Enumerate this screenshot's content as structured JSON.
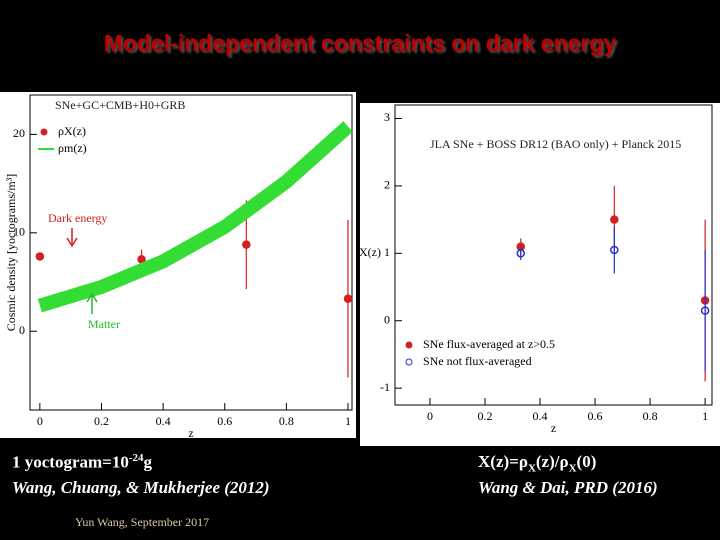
{
  "title": "Model-independent constraints on dark energy",
  "left_caption": {
    "unit_parts": [
      "1 yoctogram=10",
      "-24",
      "g"
    ],
    "citation": "Wang, Chuang, & Mukherjee (2012)"
  },
  "right_caption": {
    "equation_parts": [
      "X(z)=ρ",
      "X",
      "(z)/ρ",
      "X",
      "(0)"
    ],
    "citation": "Wang & Dai, PRD (2016)"
  },
  "footer": "Yun Wang, September 2017",
  "chart_data": [
    {
      "type": "line",
      "xlabel": "z",
      "ylabel": "Cosmic density [yoctograms/m³]",
      "xlim": [
        -0.032,
        1.013
      ],
      "ylim": [
        -8,
        24
      ],
      "xticks": [
        0,
        0.2,
        0.4,
        0.6,
        0.8,
        1
      ],
      "yticks": [
        0,
        10,
        20
      ],
      "legend": "upper left",
      "annotations": [
        "SNe+GC+CMB+H0+GRB",
        "Dark energy",
        "Matter"
      ],
      "series": [
        {
          "name": "ρX(z)",
          "color": "#d42020",
          "style": "points",
          "marker": "filled",
          "x": [
            0,
            0.33,
            0.67,
            1
          ],
          "values": [
            7.6,
            7.3,
            8.8,
            3.3
          ],
          "errors": [
            0.4,
            1.0,
            4.5,
            8
          ]
        },
        {
          "name": "ρm(z)",
          "color": "#33dd33",
          "style": "line",
          "linewidth": 14,
          "x": [
            0,
            0.2,
            0.4,
            0.6,
            0.8,
            1
          ],
          "values": [
            2.6,
            4.5,
            7.1,
            10.6,
            15.2,
            20.8
          ]
        }
      ]
    },
    {
      "type": "line",
      "xlabel": "z",
      "ylabel": "X(z)",
      "xlim": [
        -0.127,
        1.025
      ],
      "ylim": [
        -1.25,
        3.2
      ],
      "xticks": [
        0,
        0.2,
        0.4,
        0.6,
        0.8,
        1
      ],
      "yticks": [
        -1,
        0,
        1,
        2,
        3
      ],
      "legend": "lower left",
      "annotations": [
        "JLA SNe + BOSS DR12 (BAO only) + Planck 2015"
      ],
      "series": [
        {
          "name": "SNe flux-averaged at z>0.5",
          "color": "#d42020",
          "style": "points",
          "marker": "filled",
          "x": [
            0.33,
            0.67,
            1
          ],
          "values": [
            1.1,
            1.5,
            0.3
          ],
          "errors": [
            0.12,
            0.5,
            1.2
          ]
        },
        {
          "name": "SNe not flux-averaged",
          "color": "#2233cc",
          "style": "points",
          "marker": "open",
          "x": [
            0.33,
            0.67,
            1
          ],
          "values": [
            1.0,
            1.05,
            0.15
          ],
          "errors": [
            0.1,
            0.35,
            0.9
          ]
        }
      ]
    }
  ]
}
